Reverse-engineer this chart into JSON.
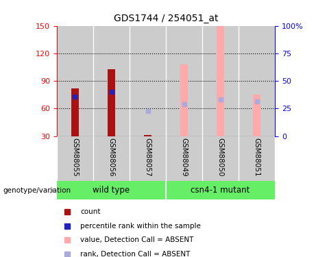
{
  "title": "GDS1744 / 254051_at",
  "categories": [
    "GSM88055",
    "GSM88056",
    "GSM88057",
    "GSM88049",
    "GSM88050",
    "GSM88051"
  ],
  "ymin": 30,
  "ymax": 150,
  "yticks": [
    30,
    60,
    90,
    120,
    150
  ],
  "y2ticks": [
    0,
    25,
    50,
    75,
    100
  ],
  "bar_bottom": 30,
  "red_bar_tops": [
    82,
    103,
    31.5,
    null,
    null,
    null
  ],
  "pink_bar_tops": [
    null,
    null,
    null,
    108,
    150,
    75
  ],
  "blue_squares": [
    73,
    78,
    null,
    null,
    null,
    null
  ],
  "light_blue_squares": [
    null,
    null,
    57,
    65,
    70,
    68
  ],
  "group1_label": "wild type",
  "group2_label": "csn4-1 mutant",
  "group_color": "#66ee66",
  "bg_color_gray": "#cccccc",
  "red_color": "#aa1111",
  "pink_color": "#ffaaaa",
  "blue_color": "#2222bb",
  "light_blue_color": "#aaaadd",
  "genotype_label": "genotype/variation"
}
